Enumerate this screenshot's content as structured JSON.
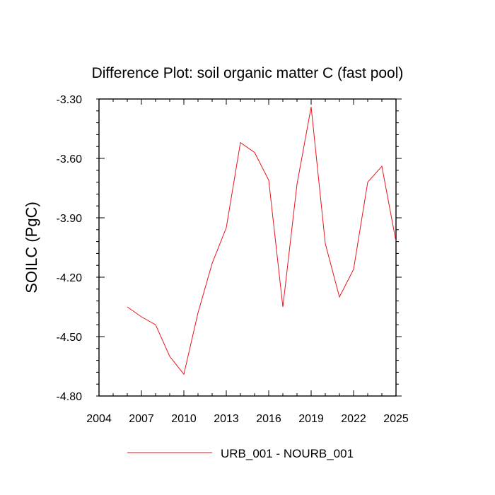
{
  "chart_data": {
    "type": "line",
    "title": "Difference Plot: soil organic matter C (fast pool)",
    "xlabel": "",
    "ylabel": "SOILC  (PgC)",
    "xlim": [
      2004,
      2025
    ],
    "ylim": [
      -4.8,
      -3.3
    ],
    "x_ticks": [
      "2004",
      "2007",
      "2010",
      "2013",
      "2016",
      "2019",
      "2022",
      "2025"
    ],
    "y_ticks": [
      "-3.30",
      "-3.60",
      "-3.90",
      "-4.20",
      "-4.50",
      "-4.80"
    ],
    "legend_position": "bottom",
    "grid": false,
    "series": [
      {
        "name": "URB_001 - NOURB_001",
        "color": "#e8141c",
        "x": [
          2006,
          2007,
          2008,
          2009,
          2010,
          2011,
          2012,
          2013,
          2014,
          2015,
          2016,
          2017,
          2018,
          2019,
          2020,
          2021,
          2022,
          2023,
          2024,
          2025
        ],
        "y": [
          -4.35,
          -4.4,
          -4.44,
          -4.6,
          -4.69,
          -4.38,
          -4.13,
          -3.95,
          -3.52,
          -3.57,
          -3.71,
          -4.35,
          -3.73,
          -3.34,
          -4.03,
          -4.3,
          -4.16,
          -3.72,
          -3.64,
          -4.02
        ]
      }
    ]
  }
}
